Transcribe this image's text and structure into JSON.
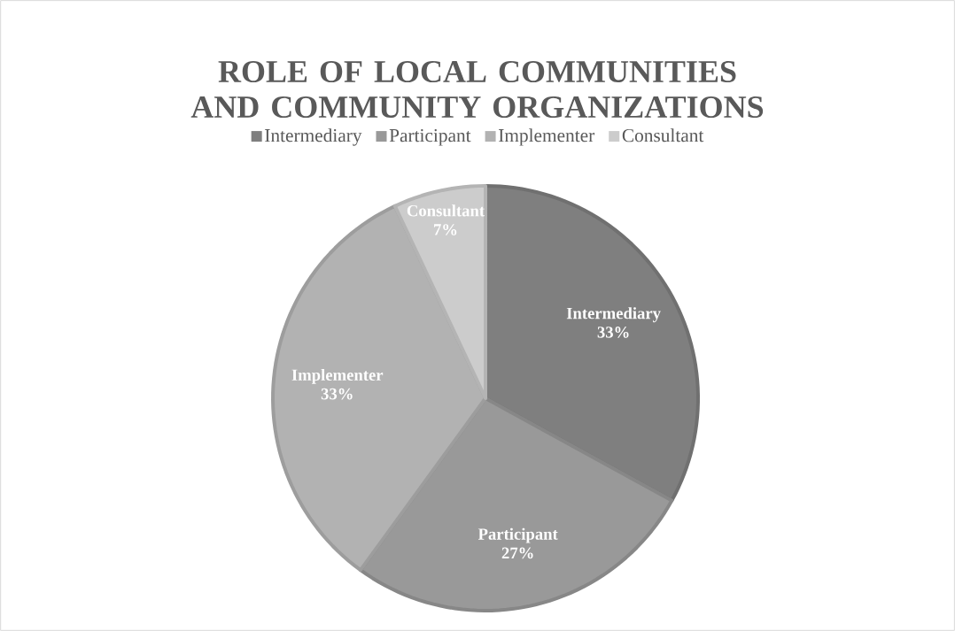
{
  "chart_data": {
    "type": "pie",
    "title": "ROLE OF LOCAL COMMUNITIES AND COMMUNITY ORGANIZATIONS",
    "categories": [
      "Intermediary",
      "Participant",
      "Implementer",
      "Consultant"
    ],
    "values": [
      33,
      27,
      33,
      7
    ],
    "colors": [
      "#7f7f7f",
      "#999999",
      "#b2b2b2",
      "#cccccc"
    ],
    "value_labels": [
      "33%",
      "27%",
      "33%",
      "7%"
    ],
    "legend": "top"
  }
}
